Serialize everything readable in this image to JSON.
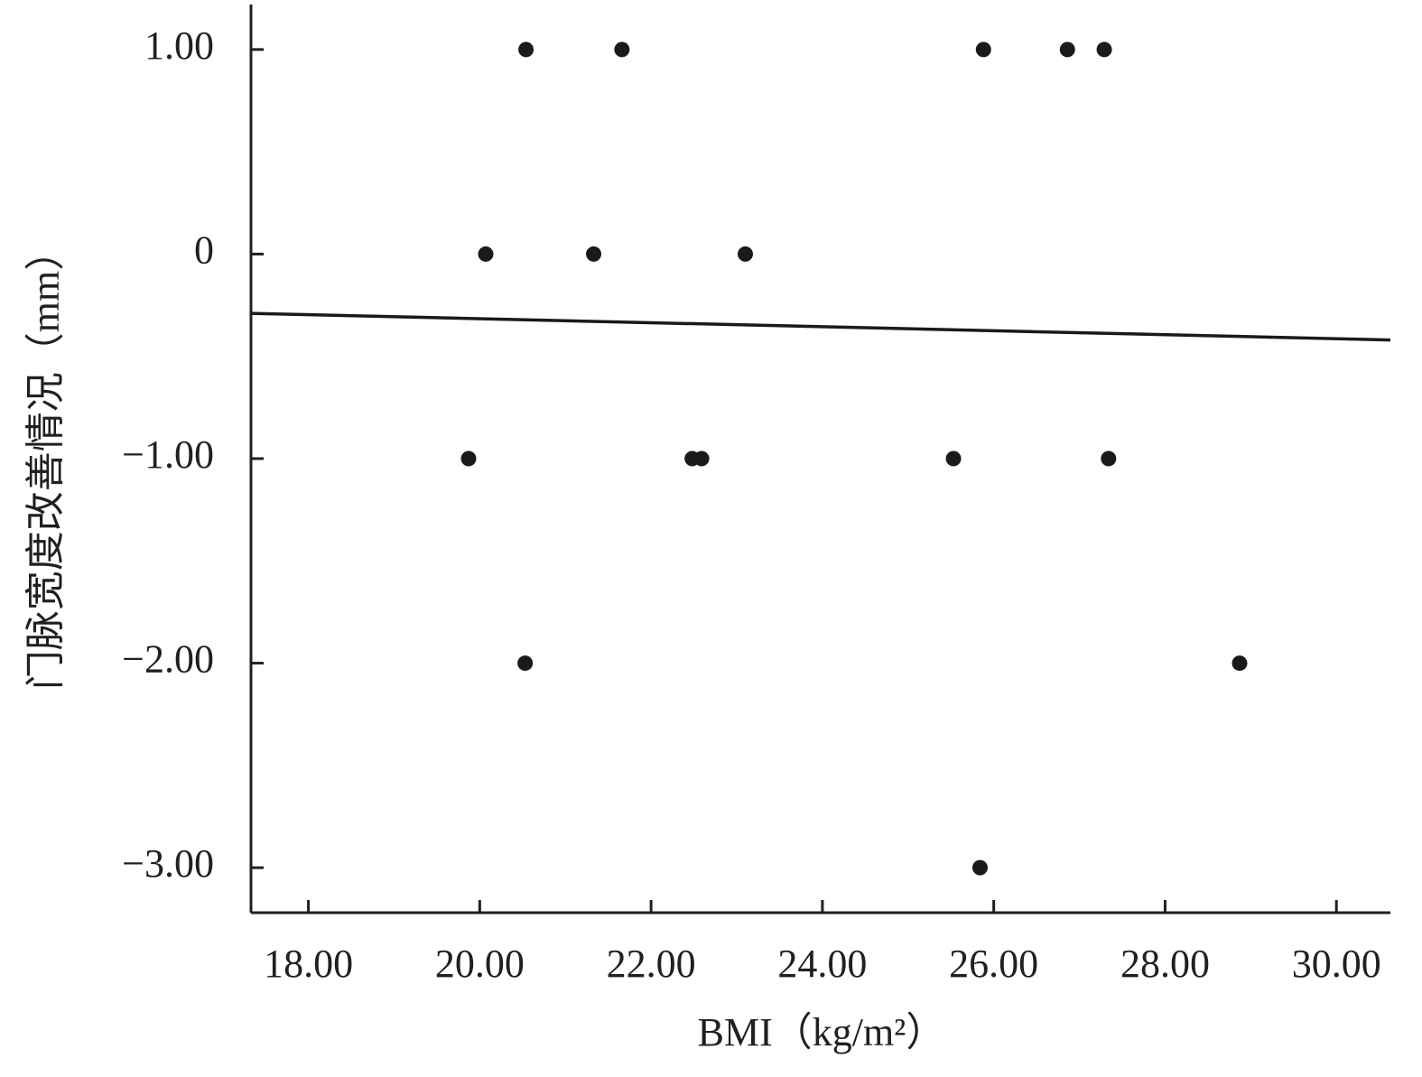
{
  "chart_data": {
    "type": "scatter",
    "x_label": "BMI（kg/m²）",
    "y_label": "门脉宽度改善情况（mm）",
    "x": [
      20.54,
      21.66,
      25.88,
      26.86,
      27.29,
      20.07,
      21.33,
      23.1,
      19.87,
      22.48,
      22.59,
      25.53,
      27.34,
      20.53,
      28.87,
      25.84
    ],
    "values": [
      1,
      1,
      1,
      1,
      1,
      0,
      0,
      0,
      -1,
      -1,
      -1,
      -1,
      -1,
      -2,
      -2,
      -3
    ],
    "color": "#1a1a1a",
    "fit_line": {
      "x": [
        17.33,
        30.63
      ],
      "y": [
        -0.29,
        -0.42
      ]
    },
    "xlim": [
      17.33,
      30.63
    ],
    "ylim": [
      -3.22,
      1.22
    ],
    "xticks": [
      {
        "value": 18,
        "label": "18.00"
      },
      {
        "value": 20,
        "label": "20.00"
      },
      {
        "value": 22,
        "label": "22.00"
      },
      {
        "value": 24,
        "label": "24.00"
      },
      {
        "value": 26,
        "label": "26.00"
      },
      {
        "value": 28,
        "label": "28.00"
      },
      {
        "value": 30,
        "label": "30.00"
      }
    ],
    "yticks": [
      {
        "value": 1,
        "label": "1.00"
      },
      0,
      {
        "value": -1,
        "label": "−1.00"
      },
      {
        "value": -2,
        "label": "−2.00"
      },
      {
        "value": -3,
        "label": "−3.00"
      }
    ]
  }
}
